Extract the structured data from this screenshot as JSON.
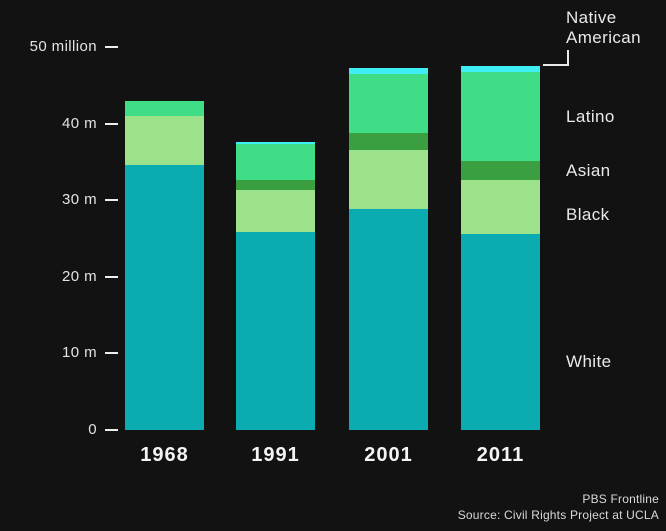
{
  "colors": {
    "background": "#121212",
    "text": "#E9E9E9",
    "white_segment": "#0BACB1",
    "black_segment": "#9BE28A",
    "asian_segment": "#3A9F41",
    "latino_segment": "#3EDD86",
    "native_american_segment": "#3FEDF5"
  },
  "chart_data": {
    "type": "bar",
    "stacked": true,
    "stack_order": "bottom-to-top",
    "categories": [
      "1968",
      "1991",
      "2001",
      "2011"
    ],
    "series": [
      {
        "name": "White",
        "color": "#0BACB1",
        "values": [
          34.6,
          25.8,
          28.8,
          25.6
        ]
      },
      {
        "name": "Black",
        "color": "#9BE28A",
        "values": [
          6.4,
          5.5,
          7.8,
          7.0
        ]
      },
      {
        "name": "Asian",
        "color": "#3A9F41",
        "values": [
          0,
          1.4,
          2.2,
          2.5
        ]
      },
      {
        "name": "Latino",
        "color": "#3EDD86",
        "values": [
          2.0,
          4.6,
          7.7,
          11.7
        ]
      },
      {
        "name": "Native American",
        "color": "#3FEDF5",
        "values": [
          0,
          0.3,
          0.8,
          0.7
        ]
      }
    ],
    "y_axis": {
      "unit": "million",
      "ticks": [
        {
          "value": 50,
          "label": "50 million"
        },
        {
          "value": 40,
          "label": "40 m"
        },
        {
          "value": 30,
          "label": "30 m"
        },
        {
          "value": 20,
          "label": "20 m"
        },
        {
          "value": 10,
          "label": "10 m"
        },
        {
          "value": 0,
          "label": "0"
        }
      ]
    },
    "ylim": [
      0,
      52
    ],
    "xlabel": "",
    "ylabel": "",
    "grid": false,
    "legend_position": "right"
  },
  "legend": {
    "items": [
      {
        "label": "Native American"
      },
      {
        "label": "Latino"
      },
      {
        "label": "Asian"
      },
      {
        "label": "Black"
      },
      {
        "label": "White"
      }
    ]
  },
  "footer": {
    "credit": "PBS Frontline",
    "source": "Source: Civil Rights Project at UCLA"
  }
}
